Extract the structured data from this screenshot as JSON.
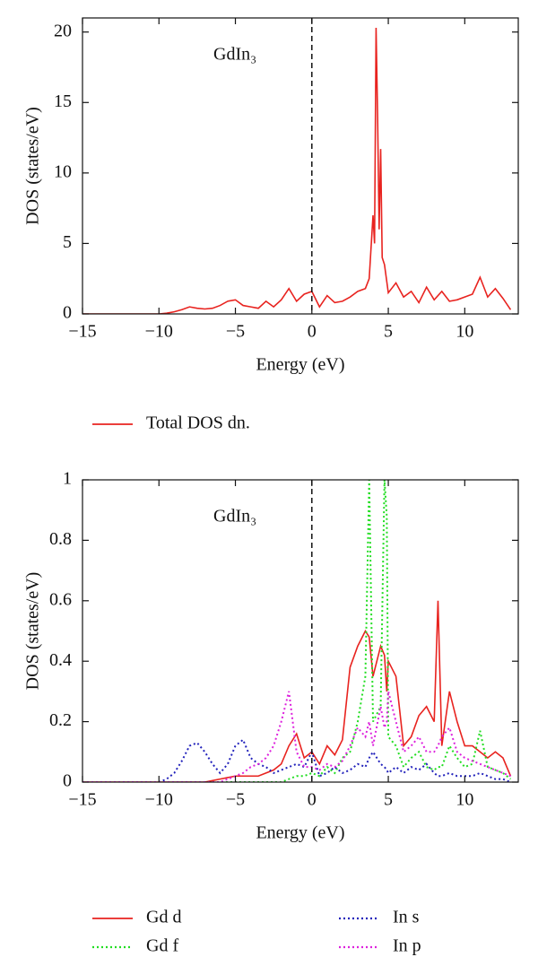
{
  "chart_data": [
    {
      "type": "line",
      "annotation": "GdIn₃",
      "xlabel": "Energy (eV)",
      "ylabel": "DOS (states/eV)",
      "xlim": [
        -15,
        13.5
      ],
      "ylim": [
        0,
        21
      ],
      "xticks": [
        -15,
        -10,
        -5,
        0,
        5,
        10
      ],
      "yticks": [
        0,
        5,
        10,
        15,
        20
      ],
      "vlines": [
        0
      ],
      "legend": "below",
      "x": [
        -15,
        -12,
        -10,
        -9.5,
        -9,
        -8.5,
        -8,
        -7.5,
        -7,
        -6.5,
        -6,
        -5.5,
        -5,
        -4.5,
        -4,
        -3.5,
        -3,
        -2.5,
        -2,
        -1.5,
        -1,
        -0.5,
        0,
        0.5,
        1,
        1.5,
        2,
        2.5,
        3,
        3.5,
        3.75,
        4,
        4.1,
        4.2,
        4.3,
        4.4,
        4.5,
        4.6,
        4.75,
        5,
        5.5,
        6,
        6.5,
        7,
        7.5,
        8,
        8.5,
        9,
        9.5,
        10,
        10.5,
        11,
        11.5,
        12,
        12.5,
        13
      ],
      "series": [
        {
          "name": "Total DOS dn.",
          "color": "#e8231f",
          "style": "solid",
          "values": [
            0,
            0,
            0,
            0.05,
            0.15,
            0.3,
            0.5,
            0.4,
            0.35,
            0.4,
            0.6,
            0.9,
            1.0,
            0.6,
            0.5,
            0.4,
            0.9,
            0.5,
            1.0,
            1.8,
            0.9,
            1.4,
            1.6,
            0.5,
            1.3,
            0.8,
            0.9,
            1.2,
            1.6,
            1.8,
            2.5,
            7.0,
            5,
            20.3,
            14,
            6,
            11.7,
            4,
            3.5,
            1.5,
            2.2,
            1.2,
            1.6,
            0.8,
            1.9,
            1.0,
            1.6,
            0.9,
            1.0,
            1.2,
            1.4,
            2.6,
            1.2,
            1.8,
            1.1,
            0.3
          ]
        }
      ]
    },
    {
      "type": "line",
      "annotation": "GdIn₃",
      "xlabel": "Energy (eV)",
      "ylabel": "DOS (states/eV)",
      "xlim": [
        -15,
        13.5
      ],
      "ylim": [
        0,
        1
      ],
      "xticks": [
        -15,
        -10,
        -5,
        0,
        5,
        10
      ],
      "yticks": [
        0,
        0.2,
        0.4,
        0.6,
        0.8,
        1
      ],
      "vlines": [
        0
      ],
      "legend": "below",
      "x": [
        -15,
        -12,
        -10,
        -9.5,
        -9,
        -8.5,
        -8,
        -7.5,
        -7,
        -6.5,
        -6,
        -5.5,
        -5,
        -4.5,
        -4,
        -3.5,
        -3,
        -2.5,
        -2,
        -1.5,
        -1,
        -0.5,
        0,
        0.5,
        1,
        1.5,
        2,
        2.5,
        3,
        3.5,
        3.75,
        4,
        4.5,
        4.75,
        4.9,
        5,
        5.5,
        6,
        6.5,
        7,
        7.5,
        8,
        8.25,
        8.5,
        9,
        9.5,
        10,
        10.5,
        11,
        11.5,
        12,
        12.5,
        13
      ],
      "series": [
        {
          "name": "Gd d",
          "color": "#e8231f",
          "style": "solid",
          "values": [
            0,
            0,
            0,
            0,
            0,
            0,
            0,
            0,
            0,
            0.005,
            0.01,
            0.015,
            0.02,
            0.02,
            0.02,
            0.02,
            0.03,
            0.04,
            0.06,
            0.12,
            0.16,
            0.08,
            0.1,
            0.06,
            0.12,
            0.09,
            0.14,
            0.38,
            0.45,
            0.5,
            0.48,
            0.35,
            0.45,
            0.42,
            0.3,
            0.4,
            0.35,
            0.12,
            0.15,
            0.22,
            0.25,
            0.2,
            0.6,
            0.12,
            0.3,
            0.2,
            0.12,
            0.12,
            0.1,
            0.08,
            0.1,
            0.08,
            0.02
          ]
        },
        {
          "name": "Gd f",
          "color": "#22dd22",
          "style": "dotted",
          "values": [
            0,
            0,
            0,
            0,
            0,
            0,
            0,
            0,
            0,
            0,
            0,
            0,
            0,
            0,
            0,
            0,
            0,
            0,
            0,
            0.01,
            0.02,
            0.02,
            0.03,
            0.02,
            0.05,
            0.03,
            0.08,
            0.1,
            0.2,
            0.35,
            1.0,
            0.2,
            0.25,
            1.0,
            0.88,
            0.15,
            0.12,
            0.05,
            0.08,
            0.1,
            0.05,
            0.04,
            0.05,
            0.05,
            0.12,
            0.08,
            0.05,
            0.06,
            0.17,
            0.05,
            0.04,
            0.03,
            0.01
          ]
        },
        {
          "name": "In s",
          "color": "#2222bb",
          "style": "dotted",
          "values": [
            0,
            0,
            0,
            0.01,
            0.03,
            0.07,
            0.12,
            0.13,
            0.1,
            0.06,
            0.03,
            0.06,
            0.12,
            0.14,
            0.08,
            0.06,
            0.05,
            0.03,
            0.04,
            0.05,
            0.06,
            0.05,
            0.1,
            0.02,
            0.03,
            0.05,
            0.03,
            0.04,
            0.06,
            0.05,
            0.08,
            0.1,
            0.06,
            0.05,
            0.04,
            0.03,
            0.05,
            0.03,
            0.05,
            0.04,
            0.06,
            0.03,
            0.02,
            0.02,
            0.03,
            0.02,
            0.02,
            0.02,
            0.03,
            0.02,
            0.01,
            0.01,
            0
          ]
        },
        {
          "name": "In p",
          "color": "#dd22dd",
          "style": "dotted",
          "values": [
            0,
            0,
            0,
            0,
            0,
            0,
            0,
            0,
            0,
            0,
            0,
            0.01,
            0.02,
            0.03,
            0.05,
            0.06,
            0.08,
            0.12,
            0.2,
            0.3,
            0.1,
            0.05,
            0.05,
            0.04,
            0.06,
            0.05,
            0.07,
            0.12,
            0.18,
            0.15,
            0.2,
            0.12,
            0.25,
            0.18,
            0.2,
            0.3,
            0.2,
            0.1,
            0.12,
            0.15,
            0.1,
            0.1,
            0.12,
            0.15,
            0.18,
            0.1,
            0.08,
            0.07,
            0.06,
            0.05,
            0.04,
            0.03,
            0.02
          ]
        }
      ]
    }
  ]
}
